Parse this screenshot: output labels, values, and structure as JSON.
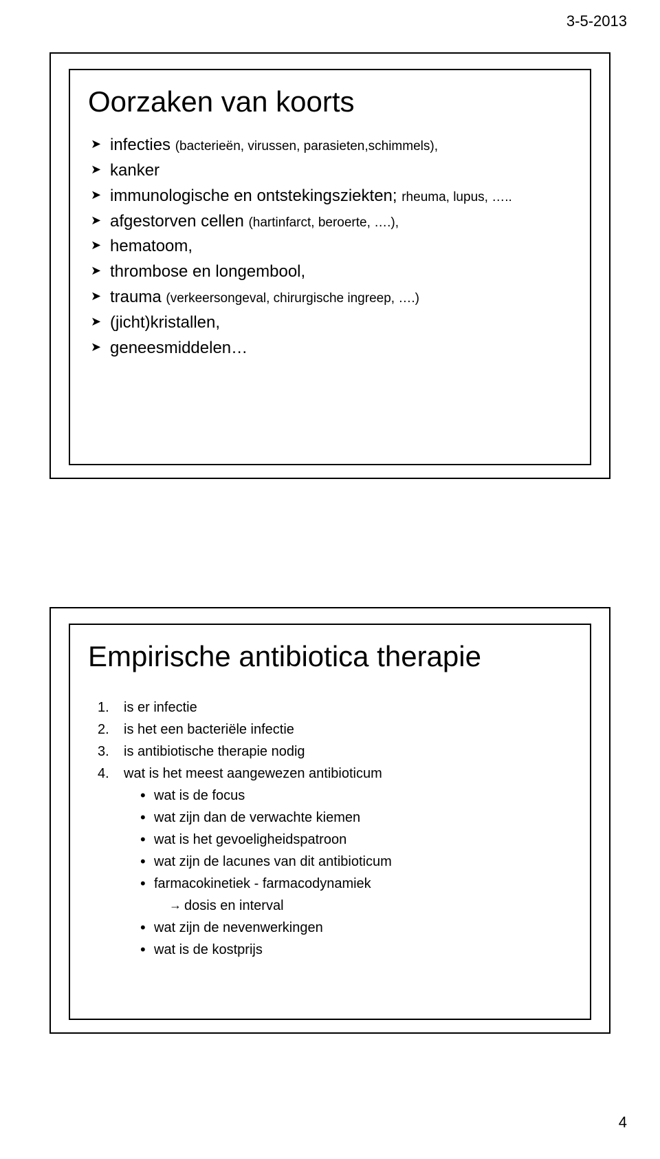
{
  "header": {
    "date": "3-5-2013"
  },
  "footer": {
    "page_number": "4"
  },
  "slide1": {
    "title": "Oorzaken van koorts",
    "items": [
      {
        "pre": "infecties ",
        "paren": "(bacterieën, virussen, parasieten,schimmels),"
      },
      {
        "text": "kanker"
      },
      {
        "pre": "immunologische en ontstekingsziekten; ",
        "suffix": "rheuma, lupus, ….."
      },
      {
        "pre": "afgestorven cellen ",
        "paren": "(hartinfarct, beroerte, ….),"
      },
      {
        "text": "hematoom,"
      },
      {
        "text": "thrombose en longembool,"
      },
      {
        "pre": "trauma ",
        "paren": "(verkeersongeval, chirurgische ingreep, ….)"
      },
      {
        "text": "(jicht)kristallen,"
      },
      {
        "text": "geneesmiddelen…"
      }
    ]
  },
  "slide2": {
    "title": "Empirische antibiotica therapie",
    "items": [
      {
        "num": "1.",
        "text": "is er infectie"
      },
      {
        "num": "2.",
        "text": "is het een bacteriële infectie"
      },
      {
        "num": "3.",
        "text": "is antibiotische therapie nodig"
      },
      {
        "num": "4.",
        "text": "wat is het meest aangewezen antibioticum",
        "sub": [
          {
            "text": "wat is de focus"
          },
          {
            "text": "wat zijn dan de verwachte kiemen"
          },
          {
            "text": "wat is het gevoeligheidspatroon"
          },
          {
            "text": "wat zijn de lacunes van dit antibioticum"
          },
          {
            "text": "farmacokinetiek - farmacodynamiek",
            "subsub": [
              {
                "text": "dosis en interval"
              }
            ]
          },
          {
            "text": "wat zijn de nevenwerkingen"
          },
          {
            "text": "wat is de kostprijs"
          }
        ]
      }
    ]
  }
}
